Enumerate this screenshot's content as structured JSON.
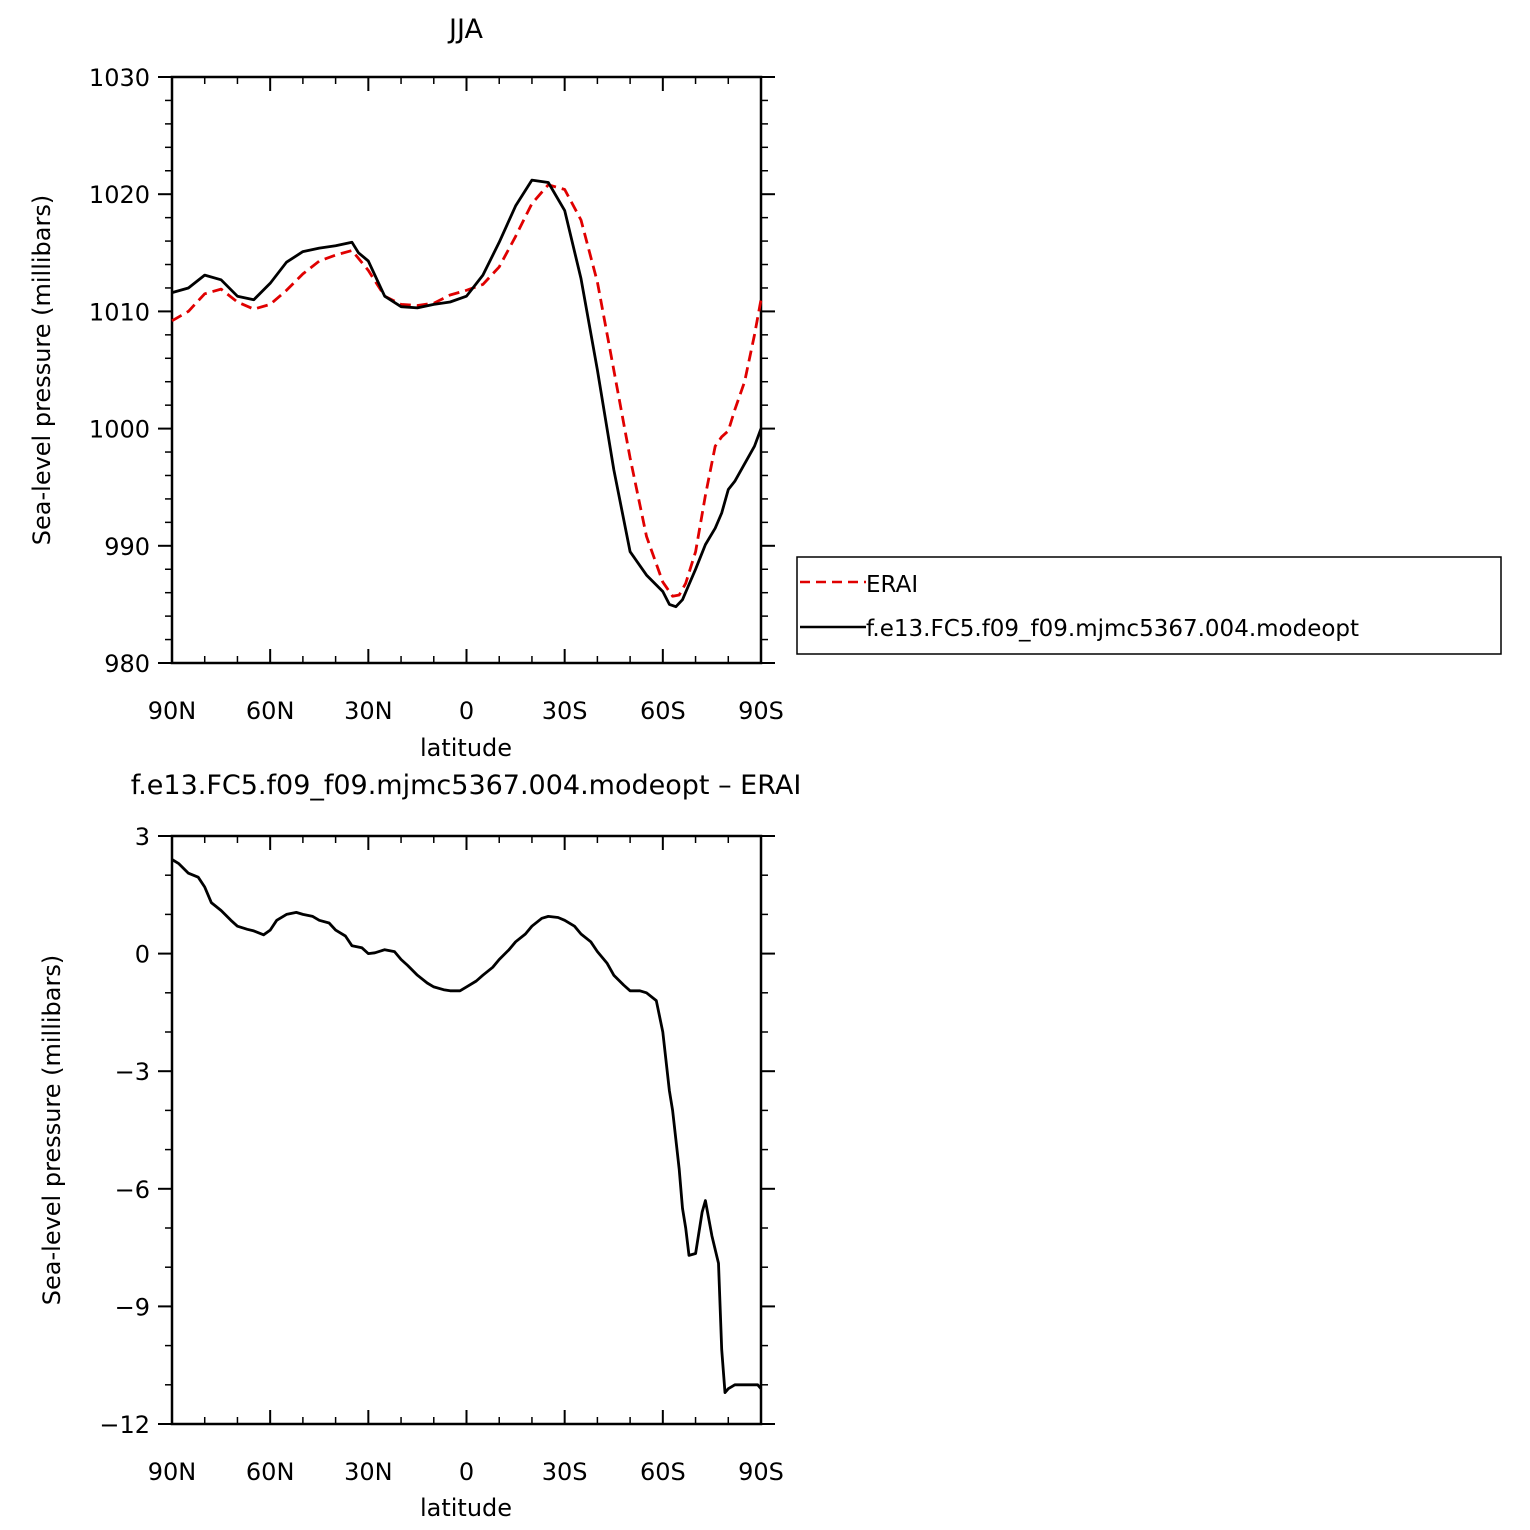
{
  "chart_data": [
    {
      "type": "line",
      "title": "JJA",
      "xlabel": "latitude",
      "ylabel": "Sea-level pressure (millibars)",
      "x_ticks": [
        "90N",
        "60N",
        "30N",
        "0",
        "30S",
        "60S",
        "90S"
      ],
      "y_ticks": [
        "980",
        "990",
        "1000",
        "1010",
        "1020",
        "1030"
      ],
      "ylim": [
        980,
        1030
      ],
      "xlim": [
        "90N",
        "90S"
      ],
      "grid": false,
      "legend_position": "right",
      "series": [
        {
          "name": "ERAI",
          "color": "#e00000",
          "dash": "dashed",
          "x": [
            "90N",
            "85N",
            "80N",
            "75N",
            "70N",
            "65N",
            "60N",
            "55N",
            "50N",
            "45N",
            "40N",
            "35N",
            "30N",
            "25N",
            "20N",
            "15N",
            "10N",
            "5N",
            "0",
            "5S",
            "10S",
            "15S",
            "20S",
            "25S",
            "30S",
            "35S",
            "40S",
            "45S",
            "50S",
            "55S",
            "60S",
            "63S",
            "65S",
            "67S",
            "70S",
            "73S",
            "76S",
            "78S",
            "80S",
            "82S",
            "85S",
            "88S",
            "90S"
          ],
          "values": [
            1009.2,
            1010.0,
            1011.5,
            1011.9,
            1010.8,
            1010.2,
            1010.6,
            1011.8,
            1013.2,
            1014.3,
            1014.8,
            1015.2,
            1013.5,
            1011.3,
            1010.6,
            1010.5,
            1010.7,
            1011.4,
            1011.8,
            1012.3,
            1013.8,
            1016.4,
            1019.2,
            1020.8,
            1020.4,
            1017.8,
            1012.5,
            1005.0,
            997.5,
            990.8,
            986.9,
            985.7,
            985.8,
            986.8,
            989.5,
            994.3,
            998.5,
            999.3,
            999.8,
            1001.6,
            1004.0,
            1008.0,
            1011.0
          ]
        },
        {
          "name": "f.e13.FC5.f09_f09.mjmc5367.004.modeopt",
          "color": "#000000",
          "dash": "solid",
          "x": [
            "90N",
            "85N",
            "80N",
            "75N",
            "70N",
            "65N",
            "60N",
            "55N",
            "50N",
            "45N",
            "40N",
            "35N",
            "33N",
            "30N",
            "25N",
            "20N",
            "15N",
            "10N",
            "5N",
            "0",
            "5S",
            "10S",
            "15S",
            "20S",
            "25S",
            "30S",
            "35S",
            "40S",
            "45S",
            "50S",
            "55S",
            "60S",
            "62S",
            "64S",
            "66S",
            "68S",
            "70S",
            "73S",
            "76S",
            "78S",
            "80S",
            "82S",
            "85S",
            "88S",
            "90S"
          ],
          "values": [
            1011.6,
            1012.0,
            1013.1,
            1012.7,
            1011.3,
            1011.0,
            1012.4,
            1014.2,
            1015.1,
            1015.4,
            1015.6,
            1015.9,
            1015.0,
            1014.3,
            1011.3,
            1010.4,
            1010.3,
            1010.6,
            1010.8,
            1011.3,
            1013.1,
            1015.9,
            1019.0,
            1021.2,
            1021.0,
            1018.6,
            1012.8,
            1005.0,
            996.5,
            989.5,
            987.5,
            986.1,
            985.0,
            984.8,
            985.4,
            986.7,
            988.0,
            990.1,
            991.5,
            992.8,
            994.8,
            995.5,
            997.0,
            998.5,
            1000.0
          ]
        }
      ]
    },
    {
      "type": "line",
      "title": "f.e13.FC5.f09_f09.mjmc5367.004.modeopt – ERAI",
      "xlabel": "latitude",
      "ylabel": "Sea-level pressure (millibars)",
      "x_ticks": [
        "90N",
        "60N",
        "30N",
        "0",
        "30S",
        "60S",
        "90S"
      ],
      "y_ticks": [
        "−12",
        "−9",
        "−6",
        "−3",
        "0",
        "3"
      ],
      "ylim": [
        -12,
        3
      ],
      "xlim": [
        "90N",
        "90S"
      ],
      "grid": false,
      "series": [
        {
          "color": "#000000",
          "dash": "solid",
          "x": [
            "90N",
            "88N",
            "85N",
            "82N",
            "80N",
            "78N",
            "75N",
            "72N",
            "70N",
            "67N",
            "65N",
            "62N",
            "60N",
            "58N",
            "55N",
            "52N",
            "50N",
            "47N",
            "45N",
            "42N",
            "40N",
            "37N",
            "35N",
            "32N",
            "30N",
            "28N",
            "25N",
            "22N",
            "20N",
            "18N",
            "15N",
            "12N",
            "10N",
            "7N",
            "5N",
            "2N",
            "0",
            "3S",
            "5S",
            "8S",
            "10S",
            "13S",
            "15S",
            "18S",
            "20S",
            "23S",
            "25S",
            "28S",
            "30S",
            "33S",
            "35S",
            "38S",
            "40S",
            "43S",
            "45S",
            "48S",
            "50S",
            "53S",
            "55S",
            "58S",
            "60S",
            "62S",
            "63S",
            "65S",
            "66S",
            "67S",
            "68S",
            "70S",
            "72S",
            "73S",
            "75S",
            "77S",
            "78S",
            "79S",
            "80S",
            "81S",
            "82S",
            "83S",
            "84S",
            "86S",
            "87S",
            "88S",
            "89S",
            "90S"
          ],
          "values": [
            2.4,
            2.3,
            2.05,
            1.95,
            1.7,
            1.3,
            1.1,
            0.85,
            0.7,
            0.62,
            0.58,
            0.48,
            0.6,
            0.85,
            1.0,
            1.05,
            1.0,
            0.95,
            0.85,
            0.78,
            0.6,
            0.45,
            0.2,
            0.15,
            0.0,
            0.02,
            0.1,
            0.05,
            -0.15,
            -0.3,
            -0.55,
            -0.75,
            -0.85,
            -0.92,
            -0.95,
            -0.95,
            -0.85,
            -0.7,
            -0.55,
            -0.35,
            -0.15,
            0.1,
            0.3,
            0.5,
            0.7,
            0.9,
            0.95,
            0.92,
            0.85,
            0.7,
            0.5,
            0.3,
            0.05,
            -0.25,
            -0.55,
            -0.8,
            -0.95,
            -0.95,
            -1.0,
            -1.2,
            -2.0,
            -3.5,
            -4.0,
            -5.5,
            -6.5,
            -7.0,
            -7.7,
            -7.65,
            -6.6,
            -6.3,
            -7.2,
            -7.9,
            -10.1,
            -11.2,
            -11.1,
            -11.05,
            -11.0,
            -11.0,
            -11.0,
            -11.0,
            -11.0,
            -11.0,
            -11.0,
            -11.1
          ]
        }
      ]
    }
  ]
}
